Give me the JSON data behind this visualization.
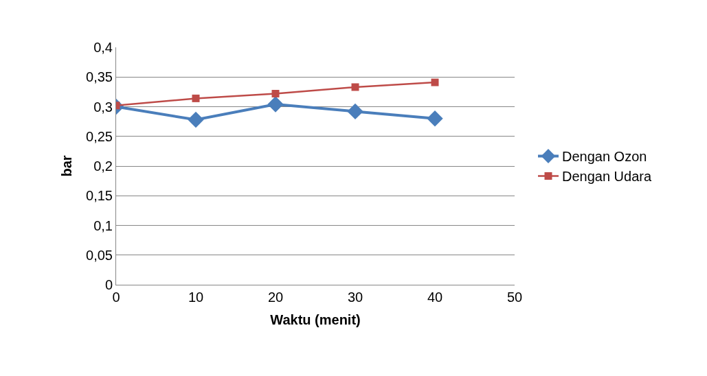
{
  "chart_data": {
    "type": "line",
    "xlabel": "Waktu (menit)",
    "ylabel": "bar",
    "x": [
      0,
      10,
      20,
      30,
      40
    ],
    "series": [
      {
        "name": "Dengan Ozon",
        "color": "#4a7ebb",
        "marker": "diamond",
        "values": [
          0.3,
          0.278,
          0.304,
          0.292,
          0.28
        ]
      },
      {
        "name": "Dengan Udara",
        "color": "#be4b48",
        "marker": "square",
        "values": [
          0.302,
          0.314,
          0.322,
          0.333,
          0.341
        ]
      }
    ],
    "xlim": [
      0,
      50
    ],
    "xticks": [
      0,
      10,
      20,
      30,
      40,
      50
    ],
    "ylim": [
      0,
      0.4
    ],
    "yticks": [
      {
        "value": 0,
        "label": "0"
      },
      {
        "value": 0.05,
        "label": "0,05"
      },
      {
        "value": 0.1,
        "label": "0,1"
      },
      {
        "value": 0.15,
        "label": "0,15"
      },
      {
        "value": 0.2,
        "label": "0,2"
      },
      {
        "value": 0.25,
        "label": "0,25"
      },
      {
        "value": 0.3,
        "label": "0,3"
      },
      {
        "value": 0.35,
        "label": "0,35"
      },
      {
        "value": 0.4,
        "label": "0,4"
      }
    ],
    "grid": "y",
    "legend": "right",
    "line_style": "solid"
  }
}
